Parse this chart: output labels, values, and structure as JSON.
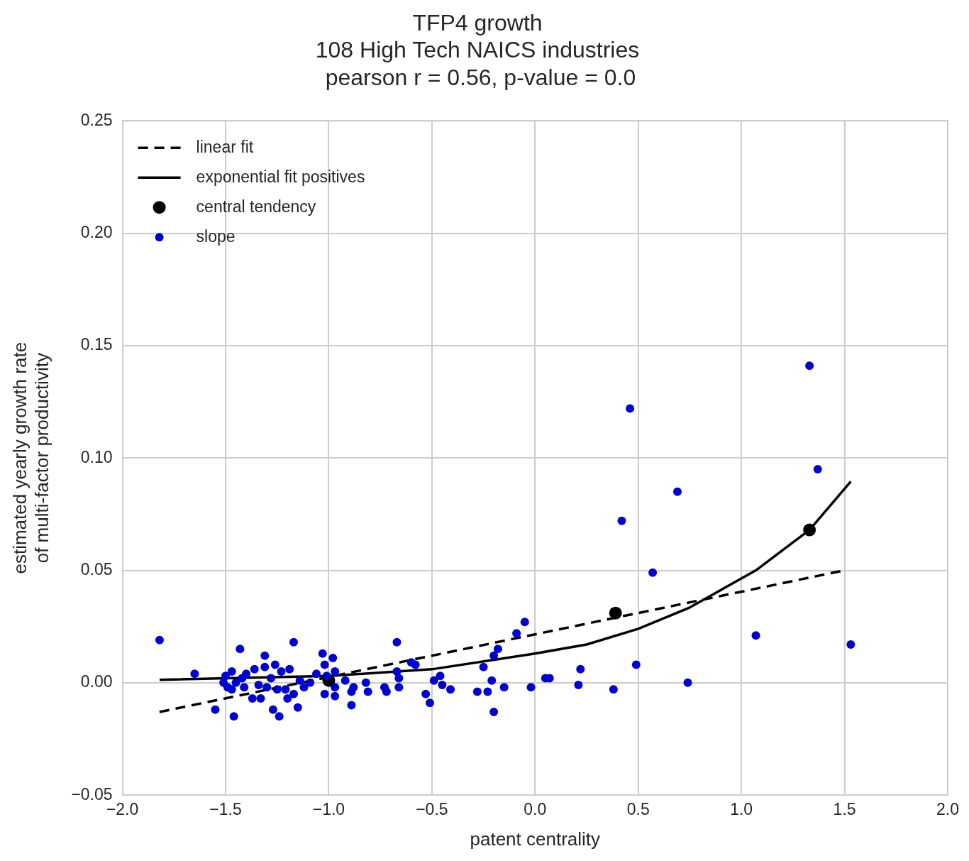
{
  "chart_data": {
    "type": "scatter",
    "title": "TFP4 growth\n108 High Tech NAICS industries\n pearson r = 0.56, p-value = 0.0",
    "xlabel": "patent centrality",
    "ylabel": "estimated yearly growth rate\nof multi-factor productivity",
    "xlim": [
      -2.0,
      2.0
    ],
    "xticks": [
      {
        "value": -2,
        "label": "−2.0"
      },
      {
        "value": -1.5,
        "label": "−1.5"
      },
      {
        "value": -1,
        "label": "−1.0"
      },
      {
        "value": -0.5,
        "label": "−0.5"
      },
      {
        "value": 0,
        "label": "0.0"
      },
      {
        "value": 0.5,
        "label": "0.5"
      },
      {
        "value": 1,
        "label": "1.0"
      },
      {
        "value": 1.5,
        "label": "1.5"
      },
      {
        "value": 2,
        "label": "2.0"
      }
    ],
    "ylim": [
      -0.05,
      0.25
    ],
    "yticks": [
      {
        "value": -0.05,
        "label": "−0.05"
      },
      {
        "value": 0,
        "label": "0.00"
      },
      {
        "value": 0.05,
        "label": "0.05"
      },
      {
        "value": 0.1,
        "label": "0.10"
      },
      {
        "value": 0.15,
        "label": "0.15"
      },
      {
        "value": 0.2,
        "label": "0.20"
      },
      {
        "value": 0.25,
        "label": "0.25"
      }
    ],
    "grid": true,
    "legend": "top left",
    "series": [
      {
        "name": "linear fit",
        "type": "line",
        "line_style": "dashed",
        "marker": "none",
        "color": "#000000",
        "x": [
          -1.82,
          1.5
        ],
        "values": [
          -0.013,
          0.05
        ]
      },
      {
        "name": "exponential fit positives",
        "type": "line",
        "line_style": "solid",
        "marker": "none",
        "color": "#000000",
        "x": [
          -1.82,
          -1.0,
          -0.5,
          0,
          0.25,
          0.5,
          0.75,
          1.07,
          1.33,
          1.53
        ],
        "values": [
          0.0013,
          0.003,
          0.006,
          0.013,
          0.017,
          0.024,
          0.0335,
          0.05,
          0.068,
          0.0895
        ]
      },
      {
        "name": "central tendency",
        "type": "scatter",
        "marker": "circle",
        "color": "#000000",
        "x": [
          -1.0,
          0.39,
          1.33
        ],
        "values": [
          0.001,
          0.031,
          0.068
        ]
      },
      {
        "name": "slope",
        "type": "scatter",
        "marker": "circle",
        "color": "#0000cc",
        "x": [
          -1.82,
          -1.65,
          -1.55,
          -1.46,
          -1.43,
          -1.51,
          -1.5,
          -1.47,
          -1.49,
          -1.47,
          -1.45,
          -1.42,
          -1.4,
          -1.41,
          -1.37,
          -1.36,
          -1.34,
          -1.33,
          -1.31,
          -1.31,
          -1.3,
          -1.28,
          -1.27,
          -1.26,
          -1.25,
          -1.24,
          -1.23,
          -1.21,
          -1.2,
          -1.19,
          -1.17,
          -1.17,
          -1.15,
          -1.14,
          -1.12,
          -1.09,
          -1.06,
          -1.03,
          -1.02,
          -1.02,
          -1.01,
          -0.98,
          -0.97,
          -0.97,
          -0.97,
          -0.92,
          -0.89,
          -0.89,
          -0.88,
          -0.82,
          -0.81,
          -0.73,
          -0.72,
          -0.67,
          -0.67,
          -0.66,
          -0.66,
          -0.6,
          -0.58,
          -0.53,
          -0.51,
          -0.49,
          -0.46,
          -0.45,
          -0.41,
          -0.28,
          -0.25,
          -0.23,
          -0.21,
          -0.2,
          -0.2,
          -0.18,
          -0.15,
          -0.09,
          -0.05,
          -0.02,
          0.05,
          0.07,
          0.21,
          0.22,
          0.38,
          0.42,
          0.46,
          0.49,
          0.57,
          0.69,
          0.74,
          1.07,
          1.33,
          1.37,
          1.53
        ],
        "values": [
          0.019,
          0.004,
          -0.012,
          -0.015,
          0.015,
          0.0,
          0.003,
          0.005,
          -0.002,
          -0.003,
          0.0,
          0.002,
          0.004,
          -0.002,
          -0.007,
          0.006,
          -0.001,
          -0.007,
          0.012,
          0.007,
          -0.002,
          0.002,
          -0.012,
          0.008,
          -0.003,
          -0.015,
          0.005,
          -0.003,
          -0.007,
          0.006,
          0.018,
          -0.005,
          -0.011,
          0.001,
          -0.002,
          0.0,
          0.004,
          0.013,
          0.008,
          -0.005,
          0.003,
          0.011,
          0.005,
          -0.002,
          -0.006,
          0.001,
          -0.004,
          -0.01,
          -0.002,
          0.0,
          -0.004,
          -0.002,
          -0.004,
          0.018,
          0.005,
          0.002,
          -0.002,
          0.009,
          0.008,
          -0.005,
          -0.009,
          0.001,
          0.003,
          -0.001,
          -0.003,
          -0.004,
          0.007,
          -0.004,
          0.001,
          -0.013,
          0.012,
          0.015,
          -0.002,
          0.022,
          0.027,
          -0.002,
          0.002,
          0.002,
          -0.001,
          0.006,
          -0.003,
          0.072,
          0.122,
          0.008,
          0.049,
          0.085,
          0.0,
          0.021,
          0.141,
          0.095,
          0.017
        ]
      }
    ]
  }
}
